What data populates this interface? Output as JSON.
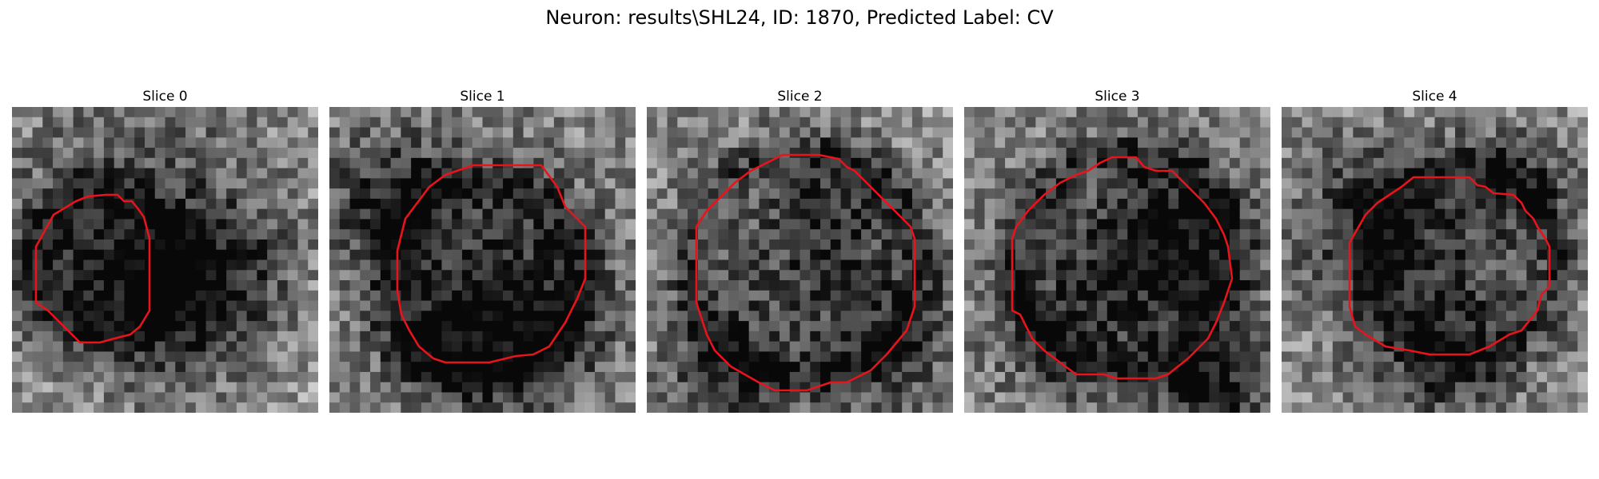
{
  "figure": {
    "title": "Neuron: results\\SHL24, ID: 1870, Predicted Label: CV"
  },
  "colors": {
    "contour": "#e8141c",
    "background": "#ffffff"
  },
  "panels": [
    {
      "title": "Slice 0"
    },
    {
      "title": "Slice 1"
    },
    {
      "title": "Slice 2"
    },
    {
      "title": "Slice 3"
    },
    {
      "title": "Slice 4"
    }
  ]
}
